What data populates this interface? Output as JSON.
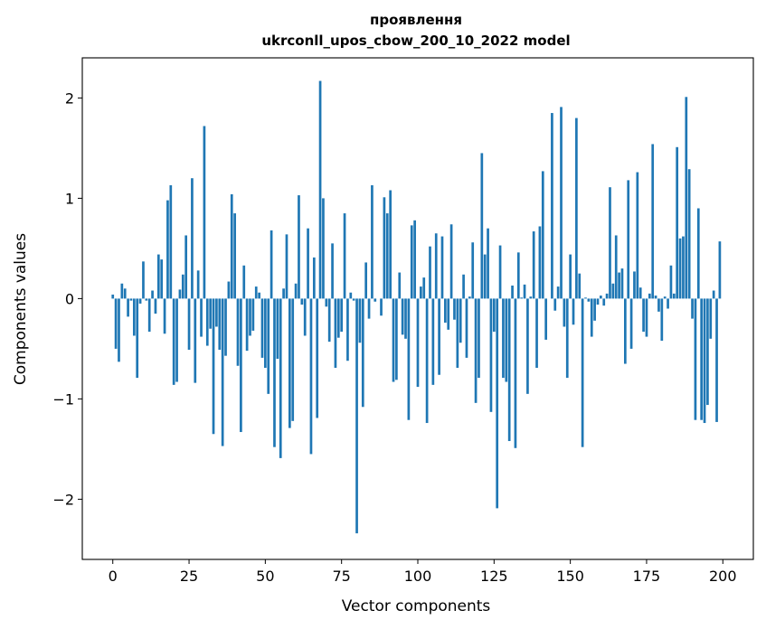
{
  "chart_data": {
    "type": "bar",
    "title_line1": "проявлення",
    "title_line2": "ukrconll_upos_cbow_200_10_2022 model",
    "xlabel": "Vector components",
    "ylabel": "Components values",
    "xlim": [
      -10,
      210
    ],
    "ylim": [
      -2.6,
      2.4
    ],
    "xticks": [
      0,
      25,
      50,
      75,
      100,
      125,
      150,
      175,
      200
    ],
    "xtick_labels": [
      "0",
      "25",
      "50",
      "75",
      "100",
      "125",
      "150",
      "175",
      "200"
    ],
    "yticks": [
      -2,
      -1,
      0,
      1,
      2
    ],
    "ytick_labels": [
      "−2",
      "−1",
      "0",
      "1",
      "2"
    ],
    "bar_color": "#1f77b4",
    "grid": false,
    "x": [
      0,
      1,
      2,
      3,
      4,
      5,
      6,
      7,
      8,
      9,
      10,
      11,
      12,
      13,
      14,
      15,
      16,
      17,
      18,
      19,
      20,
      21,
      22,
      23,
      24,
      25,
      26,
      27,
      28,
      29,
      30,
      31,
      32,
      33,
      34,
      35,
      36,
      37,
      38,
      39,
      40,
      41,
      42,
      43,
      44,
      45,
      46,
      47,
      48,
      49,
      50,
      51,
      52,
      53,
      54,
      55,
      56,
      57,
      58,
      59,
      60,
      61,
      62,
      63,
      64,
      65,
      66,
      67,
      68,
      69,
      70,
      71,
      72,
      73,
      74,
      75,
      76,
      77,
      78,
      79,
      80,
      81,
      82,
      83,
      84,
      85,
      86,
      87,
      88,
      89,
      90,
      91,
      92,
      93,
      94,
      95,
      96,
      97,
      98,
      99,
      100,
      101,
      102,
      103,
      104,
      105,
      106,
      107,
      108,
      109,
      110,
      111,
      112,
      113,
      114,
      115,
      116,
      117,
      118,
      119,
      120,
      121,
      122,
      123,
      124,
      125,
      126,
      127,
      128,
      129,
      130,
      131,
      132,
      133,
      134,
      135,
      136,
      137,
      138,
      139,
      140,
      141,
      142,
      143,
      144,
      145,
      146,
      147,
      148,
      149,
      150,
      151,
      152,
      153,
      154,
      155,
      156,
      157,
      158,
      159,
      160,
      161,
      162,
      163,
      164,
      165,
      166,
      167,
      168,
      169,
      170,
      171,
      172,
      173,
      174,
      175,
      176,
      177,
      178,
      179,
      180,
      181,
      182,
      183,
      184,
      185,
      186,
      187,
      188,
      189,
      190,
      191,
      192,
      193,
      194,
      195,
      196,
      197,
      198,
      199
    ],
    "values": [
      0.04,
      -0.5,
      -0.63,
      0.15,
      0.1,
      -0.18,
      -0.02,
      -0.37,
      -0.79,
      -0.05,
      0.37,
      -0.02,
      -0.33,
      0.08,
      -0.15,
      0.44,
      0.39,
      -0.35,
      0.98,
      1.13,
      -0.86,
      -0.83,
      0.09,
      0.24,
      0.63,
      -0.51,
      1.2,
      -0.84,
      0.28,
      -0.38,
      1.72,
      -0.47,
      -0.3,
      -1.35,
      -0.28,
      -0.51,
      -1.47,
      -0.57,
      0.17,
      1.04,
      0.85,
      -0.67,
      -1.33,
      0.33,
      -0.52,
      -0.37,
      -0.32,
      0.12,
      0.06,
      -0.59,
      -0.69,
      -0.95,
      0.68,
      -1.48,
      -0.6,
      -1.59,
      0.1,
      0.64,
      -1.29,
      -1.22,
      0.15,
      1.03,
      -0.06,
      -0.37,
      0.7,
      -1.55,
      0.41,
      -1.19,
      2.17,
      1.0,
      -0.08,
      -0.43,
      0.55,
      -0.69,
      -0.39,
      -0.33,
      0.85,
      -0.62,
      0.06,
      -0.02,
      -2.34,
      -0.44,
      -1.08,
      0.36,
      -0.2,
      1.13,
      -0.03,
      0.0,
      -0.17,
      1.01,
      0.85,
      1.08,
      -0.83,
      -0.81,
      0.26,
      -0.36,
      -0.4,
      -1.21,
      0.73,
      0.78,
      -0.88,
      0.12,
      0.21,
      -1.24,
      0.52,
      -0.86,
      0.65,
      -0.76,
      0.62,
      -0.24,
      -0.31,
      0.74,
      -0.21,
      -0.69,
      -0.44,
      0.24,
      -0.59,
      0.02,
      0.56,
      -1.04,
      -0.79,
      1.45,
      0.44,
      0.7,
      -1.13,
      -0.33,
      -2.09,
      0.53,
      -0.79,
      -0.83,
      -1.42,
      0.13,
      -1.49,
      0.46,
      0.01,
      0.14,
      -0.95,
      0.02,
      0.67,
      -0.69,
      0.72,
      1.27,
      -0.41,
      0.0,
      1.85,
      -0.12,
      0.12,
      1.91,
      -0.28,
      -0.79,
      0.44,
      -0.26,
      1.8,
      0.25,
      -1.48,
      0.01,
      -0.03,
      -0.38,
      -0.22,
      -0.06,
      0.03,
      -0.07,
      0.05,
      1.11,
      0.15,
      0.63,
      0.26,
      0.3,
      -0.65,
      1.18,
      -0.5,
      0.27,
      1.26,
      0.11,
      -0.33,
      -0.38,
      0.05,
      1.54,
      0.03,
      -0.13,
      -0.42,
      0.02,
      -0.1,
      0.33,
      0.05,
      1.51,
      0.6,
      0.62,
      2.01,
      1.29,
      -0.2,
      -1.21,
      0.9,
      -1.21,
      -1.24,
      -1.06,
      -0.4,
      0.08,
      -1.23,
      0.57
    ]
  }
}
